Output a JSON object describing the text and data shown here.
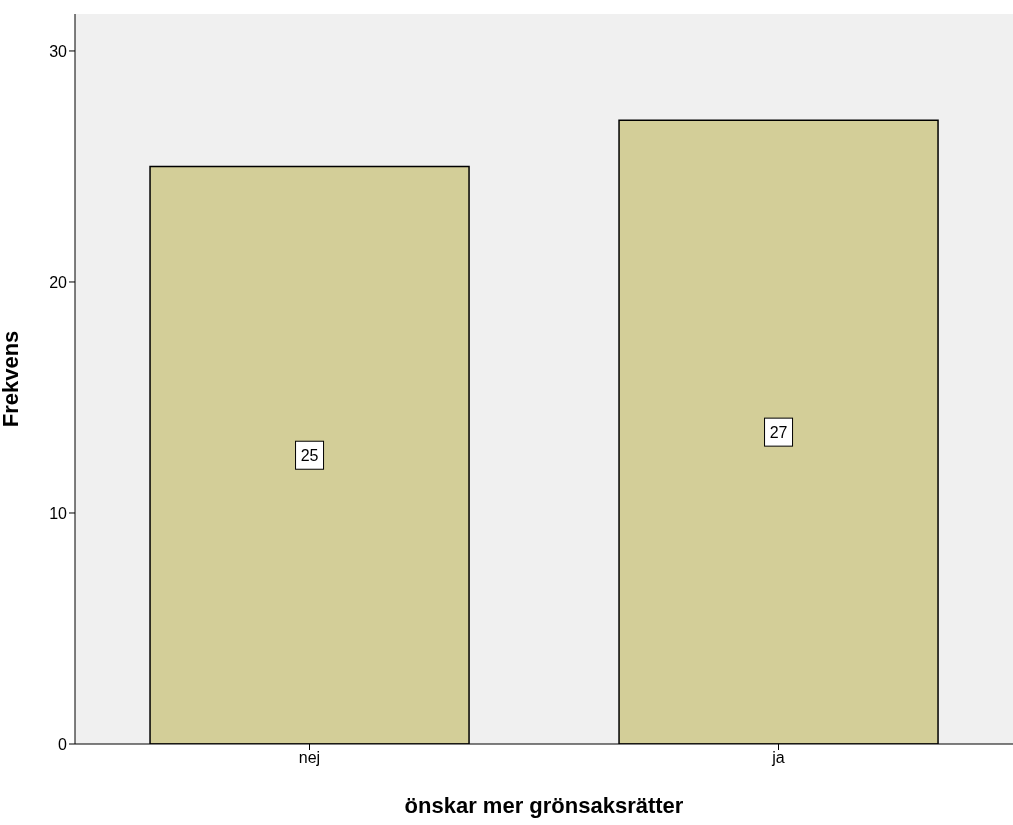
{
  "chart_data": {
    "type": "bar",
    "xlabel": "önskar mer grönsaksrätter",
    "ylabel": "Frekvens",
    "categories": [
      "nej",
      "ja"
    ],
    "values": [
      25,
      27
    ],
    "color": "#d3ce98",
    "ylim": [
      0,
      31.6
    ],
    "yticks": [
      0,
      10,
      20,
      30
    ],
    "grid": false,
    "data_labels": true
  }
}
